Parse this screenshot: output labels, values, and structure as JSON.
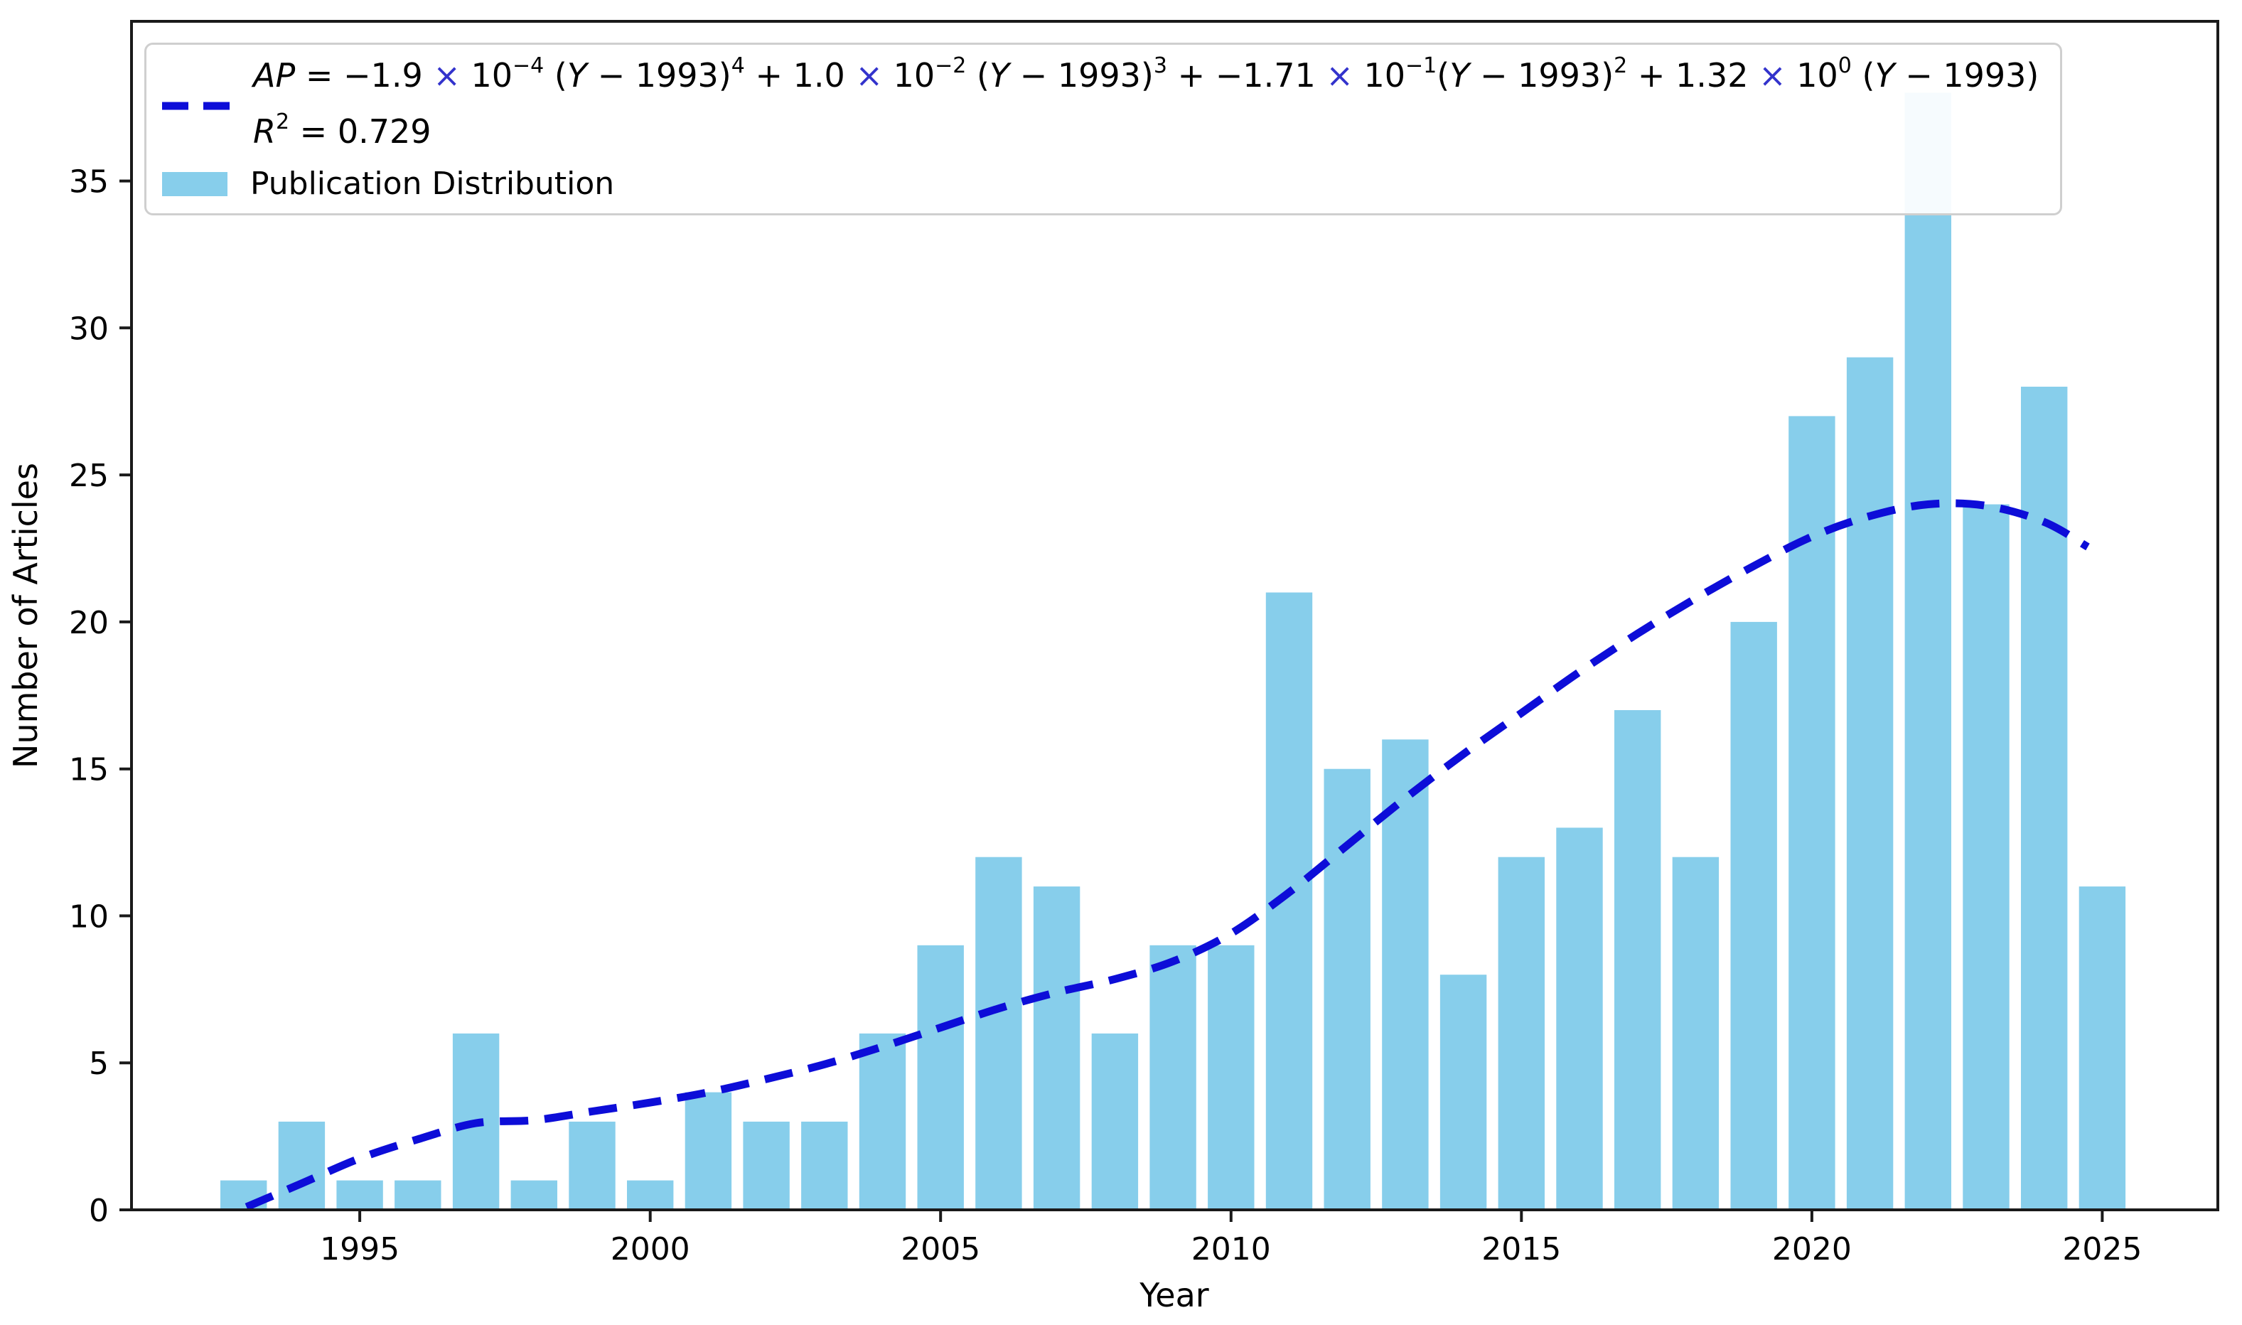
{
  "colors": {
    "bar": "#87CEEB",
    "curve": "#0d0dd8",
    "axis": "#1a1a1a",
    "text": "#000000",
    "legend_border": "#cfcfcf",
    "times_symbol": "#3333cc"
  },
  "legend": {
    "bar_label": "Publication Distribution",
    "equation_text": "AP = −1.9 × 10⁻⁴ (Y − 1993)⁴ + 1.0 × 10⁻² (Y − 1993)³ + −1.71 × 10⁻¹(Y − 1993)² + 1.32 × 10⁰ (Y − 1993)",
    "r2_text": "R² = 0.729",
    "equation_segments": [
      {
        "t": "AP",
        "i": true
      },
      {
        "t": " = −1.9 "
      },
      {
        "t": "×",
        "x": true
      },
      {
        "t": " 10"
      },
      {
        "t": "−4",
        "s": true
      },
      {
        "t": " ("
      },
      {
        "t": "Y",
        "i": true
      },
      {
        "t": " − 1993)"
      },
      {
        "t": "4",
        "s": true
      },
      {
        "t": " + 1.0 "
      },
      {
        "t": "×",
        "x": true
      },
      {
        "t": " 10"
      },
      {
        "t": "−2",
        "s": true
      },
      {
        "t": " ("
      },
      {
        "t": "Y",
        "i": true
      },
      {
        "t": " − 1993)"
      },
      {
        "t": "3",
        "s": true
      },
      {
        "t": " + −1.71 "
      },
      {
        "t": "×",
        "x": true
      },
      {
        "t": " 10"
      },
      {
        "t": "−1",
        "s": true
      },
      {
        "t": "("
      },
      {
        "t": "Y",
        "i": true
      },
      {
        "t": " − 1993)"
      },
      {
        "t": "2",
        "s": true
      },
      {
        "t": " + 1.32 "
      },
      {
        "t": "×",
        "x": true
      },
      {
        "t": " 10"
      },
      {
        "t": "0",
        "s": true
      },
      {
        "t": " ("
      },
      {
        "t": "Y",
        "i": true
      },
      {
        "t": " − 1993)"
      }
    ],
    "r2_segments": [
      {
        "t": "R",
        "i": true
      },
      {
        "t": "2",
        "s": true
      },
      {
        "t": " = 0.729"
      }
    ]
  },
  "chart_data": {
    "type": "bar",
    "title": "",
    "xlabel": "Year",
    "ylabel": "Number of Articles",
    "grid": false,
    "legend_position": "upper left",
    "xlim": [
      1991.07,
      2026.99
    ],
    "ylim": [
      0,
      40.43
    ],
    "xticks": [
      1995,
      2000,
      2005,
      2010,
      2015,
      2020,
      2025
    ],
    "yticks": [
      0,
      5,
      10,
      15,
      20,
      25,
      30,
      35
    ],
    "categories": [
      1993,
      1994,
      1995,
      1996,
      1997,
      1998,
      1999,
      2000,
      2001,
      2002,
      2003,
      2004,
      2005,
      2006,
      2007,
      2008,
      2009,
      2010,
      2011,
      2012,
      2013,
      2014,
      2015,
      2016,
      2017,
      2018,
      2019,
      2020,
      2021,
      2022,
      2023,
      2024,
      2025
    ],
    "series": [
      {
        "name": "Publication Distribution",
        "type": "bar",
        "color": "#87CEEB",
        "bar_width_years": 0.8,
        "values": [
          1,
          3,
          1,
          1,
          6,
          1,
          3,
          1,
          4,
          3,
          3,
          6,
          9,
          12,
          11,
          6,
          9,
          9,
          21,
          15,
          16,
          8,
          12,
          13,
          17,
          12,
          20,
          27,
          29,
          38,
          24,
          28,
          11
        ]
      },
      {
        "name": "AP polynomial fit (dashed)",
        "type": "line",
        "style": "dashed",
        "color": "#0d0dd8",
        "r_squared": 0.729,
        "points": [
          [
            1993.05,
            0.1
          ],
          [
            1994,
            0.9
          ],
          [
            1995,
            1.75
          ],
          [
            1996,
            2.4
          ],
          [
            1997,
            2.95
          ],
          [
            1998,
            3.05
          ],
          [
            1999,
            3.35
          ],
          [
            2000,
            3.65
          ],
          [
            2001,
            4.0
          ],
          [
            2002,
            4.45
          ],
          [
            2003,
            4.95
          ],
          [
            2004,
            5.55
          ],
          [
            2005,
            6.2
          ],
          [
            2006,
            6.85
          ],
          [
            2007,
            7.4
          ],
          [
            2008,
            7.85
          ],
          [
            2009,
            8.45
          ],
          [
            2010,
            9.4
          ],
          [
            2011,
            10.8
          ],
          [
            2012,
            12.4
          ],
          [
            2013,
            14.0
          ],
          [
            2014,
            15.5
          ],
          [
            2015,
            16.9
          ],
          [
            2016,
            18.3
          ],
          [
            2017,
            19.6
          ],
          [
            2018,
            20.8
          ],
          [
            2019,
            21.9
          ],
          [
            2020,
            22.9
          ],
          [
            2021,
            23.6
          ],
          [
            2022,
            24.0
          ],
          [
            2023,
            23.95
          ],
          [
            2024,
            23.4
          ],
          [
            2024.75,
            22.55
          ]
        ]
      }
    ]
  }
}
